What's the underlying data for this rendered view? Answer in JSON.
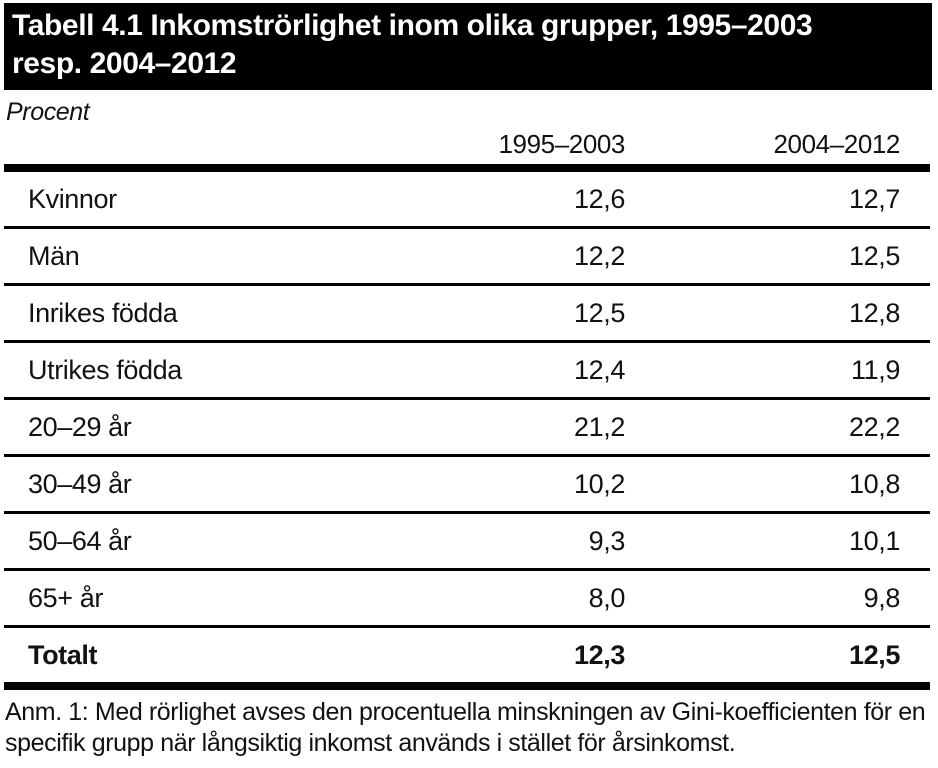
{
  "title": {
    "full": "Tabell 4.1 Inkomströrlighet inom olika grupper, 1995–2003 resp. 2004–2012",
    "lines": [
      "Tabell 4.1 Inkomströrlighet inom olika grupper, 1995–2003",
      "resp. 2004–2012"
    ]
  },
  "unit_label": "Procent",
  "table": {
    "columns": [
      "1995–2003",
      "2004–2012"
    ],
    "rows": [
      {
        "label": "Kvinnor",
        "values": [
          "12,6",
          "12,7"
        ]
      },
      {
        "label": "Män",
        "values": [
          "12,2",
          "12,5"
        ]
      },
      {
        "label": "Inrikes födda",
        "values": [
          "12,5",
          "12,8"
        ]
      },
      {
        "label": "Utrikes födda",
        "values": [
          "12,4",
          "11,9"
        ]
      },
      {
        "label": "20–29 år",
        "values": [
          "21,2",
          "22,2"
        ]
      },
      {
        "label": "30–49 år",
        "values": [
          "10,2",
          "10,8"
        ]
      },
      {
        "label": "50–64 år",
        "values": [
          "9,3",
          "10,1"
        ]
      },
      {
        "label": "65+ år",
        "values": [
          "8,0",
          "9,8"
        ]
      },
      {
        "label": "Totalt",
        "values": [
          "12,3",
          "12,5"
        ]
      }
    ]
  },
  "footnote": "Anm. 1: Med rörlighet avses den procentuella minskningen av Gini-koefficienten för en specifik grupp när långsiktig inkomst används i stället för årsinkomst.",
  "colors": {
    "title_bar_bg": "#000000",
    "title_bar_text": "#ffffff",
    "text": "#121212",
    "rule": "#000000"
  }
}
